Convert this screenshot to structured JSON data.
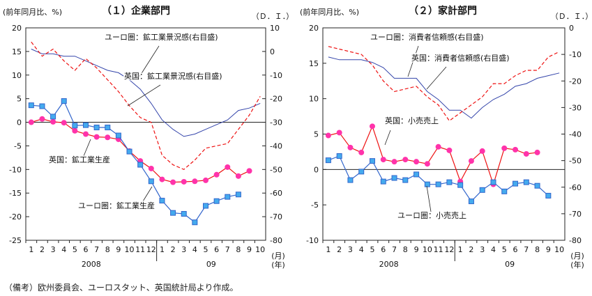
{
  "note": "（備考）欧州委員会、ユーロスタット、英国統計局より作成。",
  "axis_text": {
    "left_unit": "(前年同月比、%)",
    "right_unit": "（Ｄ．Ｉ．）",
    "x_unit_month": "(月)",
    "x_unit_year": "(年)"
  },
  "years": [
    "2008",
    "09"
  ],
  "chart_data": [
    {
      "type": "line",
      "title": "（１）企業部門",
      "x_ticks": [
        "1",
        "2",
        "3",
        "4",
        "5",
        "6",
        "7",
        "8",
        "9",
        "10",
        "11",
        "12",
        "1",
        "2",
        "3",
        "4",
        "5",
        "6",
        "7",
        "8",
        "9",
        "10"
      ],
      "y_left": {
        "min": -25,
        "max": 20,
        "step": 5,
        "ticks": [
          "20",
          "15",
          "10",
          "5",
          "0",
          "-5",
          "-10",
          "-15",
          "-20",
          "-25"
        ]
      },
      "y_right": {
        "min": -80,
        "max": 10,
        "step": 10,
        "ticks": [
          "10",
          "0",
          "-10",
          "-20",
          "-30",
          "-40",
          "-50",
          "-60",
          "-70",
          "-80"
        ]
      },
      "series": [
        {
          "name": "ユーロ圏：鉱工業景況感(右目盛)",
          "axis": "right",
          "style": "solid",
          "color": "#3344aa",
          "values": [
            1,
            -1,
            -1,
            -2,
            -2,
            -4,
            -6,
            -8,
            -9,
            -12,
            -16,
            -22,
            -29,
            -33,
            -36,
            -35,
            -33,
            -31,
            -29,
            -25,
            -24,
            -22
          ]
        },
        {
          "name": "英国：鉱工業景況感(右目盛)",
          "axis": "right",
          "style": "dashed",
          "color": "#ee1111",
          "values": [
            4,
            -2,
            1,
            -4,
            -8,
            -3,
            -7,
            -12,
            -17,
            -23,
            -28,
            -30,
            -44,
            -48,
            -50,
            -46,
            -41,
            -40,
            -39,
            -33,
            -27,
            -19
          ]
        },
        {
          "name": "英国：鉱工業生産",
          "axis": "left",
          "style": "marker-circle",
          "color": "#ee1111",
          "marker": "#ff33aa",
          "values": [
            0,
            0.7,
            0.1,
            -0.1,
            -1.8,
            -2.5,
            -3.1,
            -3.2,
            -3.6,
            -6.1,
            -8.2,
            -9.8,
            -12.1,
            -12.7,
            -12.6,
            -12.5,
            -12.3,
            -11.1,
            -9.5,
            -11.4,
            -10.3,
            null
          ]
        },
        {
          "name": "ユーロ圏：鉱工業生産",
          "axis": "left",
          "style": "marker-square",
          "color": "#3366cc",
          "marker": "#44aaee",
          "values": [
            3.6,
            3.4,
            1.2,
            4.5,
            -0.7,
            -0.6,
            -1.1,
            -1.1,
            -2.8,
            -6.2,
            -9.0,
            -12.5,
            -16.6,
            -19.2,
            -19.4,
            -21.2,
            -17.7,
            -16.7,
            -15.8,
            -15.3,
            null,
            null
          ]
        }
      ]
    },
    {
      "type": "line",
      "title": "（２）家計部門",
      "x_ticks": [
        "1",
        "2",
        "3",
        "4",
        "5",
        "6",
        "7",
        "8",
        "9",
        "10",
        "11",
        "12",
        "1",
        "2",
        "3",
        "4",
        "5",
        "6",
        "7",
        "8",
        "9",
        "10"
      ],
      "y_left": {
        "min": -10,
        "max": 20,
        "step": 5,
        "ticks": [
          "20",
          "15",
          "10",
          "5",
          "0",
          "-5",
          "-10"
        ]
      },
      "y_right": {
        "min": -80,
        "max": 0,
        "step": 10,
        "ticks": [
          "0",
          "-10",
          "-20",
          "-30",
          "-40",
          "-50",
          "-60",
          "-70",
          "-80"
        ]
      },
      "series": [
        {
          "name": "ユーロ圏：消費者信頼感(右目盛)",
          "axis": "right",
          "style": "solid",
          "color": "#3344aa",
          "values": [
            -11,
            -12,
            -12,
            -12,
            -13,
            -15,
            -19,
            -19,
            -19,
            -24,
            -27,
            -31,
            -31,
            -34,
            -30,
            -27,
            -25,
            -22,
            -21,
            -19,
            -18,
            -17
          ]
        },
        {
          "name": "英国：消費者信頼感(右目盛)",
          "axis": "right",
          "style": "dashed",
          "color": "#ee1111",
          "values": [
            -7,
            -8,
            -9,
            -10,
            -14,
            -20,
            -24,
            -23,
            -22,
            -26,
            -29,
            -35,
            -32,
            -29,
            -26,
            -21,
            -21,
            -18,
            -16,
            -16,
            -11,
            -9
          ]
        },
        {
          "name": "英国：小売売上",
          "axis": "left",
          "style": "marker-circle",
          "color": "#ee1111",
          "marker": "#ff33aa",
          "values": [
            4.8,
            5.2,
            3.1,
            2.4,
            6.1,
            1.4,
            1.1,
            1.4,
            1.1,
            0.8,
            3.2,
            2.7,
            -1.7,
            1.2,
            2.6,
            -2.1,
            3.0,
            2.8,
            2.2,
            2.4,
            null,
            null
          ]
        },
        {
          "name": "ユーロ圏：小売売上",
          "axis": "left",
          "style": "marker-square",
          "color": "#3366cc",
          "marker": "#44aaee",
          "values": [
            1.3,
            1.9,
            -1.5,
            -0.3,
            1.2,
            -1.7,
            -1.2,
            -1.5,
            -0.7,
            -2.1,
            -2.1,
            -1.8,
            -2.2,
            -4.5,
            -2.9,
            -1.8,
            -3.1,
            -2.0,
            -1.8,
            -2.3,
            -3.7,
            null
          ]
        }
      ]
    }
  ],
  "annotations": [
    {
      "chart": 0,
      "text": "ユーロ圏：鉱工業景況感(右目盛)"
    },
    {
      "chart": 0,
      "text": "英国：鉱工業景況感(右目盛)"
    },
    {
      "chart": 0,
      "text": "英国：鉱工業生産"
    },
    {
      "chart": 0,
      "text": "ユーロ圏：鉱工業生産"
    },
    {
      "chart": 1,
      "text": "ユーロ圏：消費者信頼感(右目盛)"
    },
    {
      "chart": 1,
      "text": "英国：消費者信頼感(右目盛)"
    },
    {
      "chart": 1,
      "text": "英国：小売売上"
    },
    {
      "chart": 1,
      "text": "ユーロ圏：小売売上"
    }
  ]
}
